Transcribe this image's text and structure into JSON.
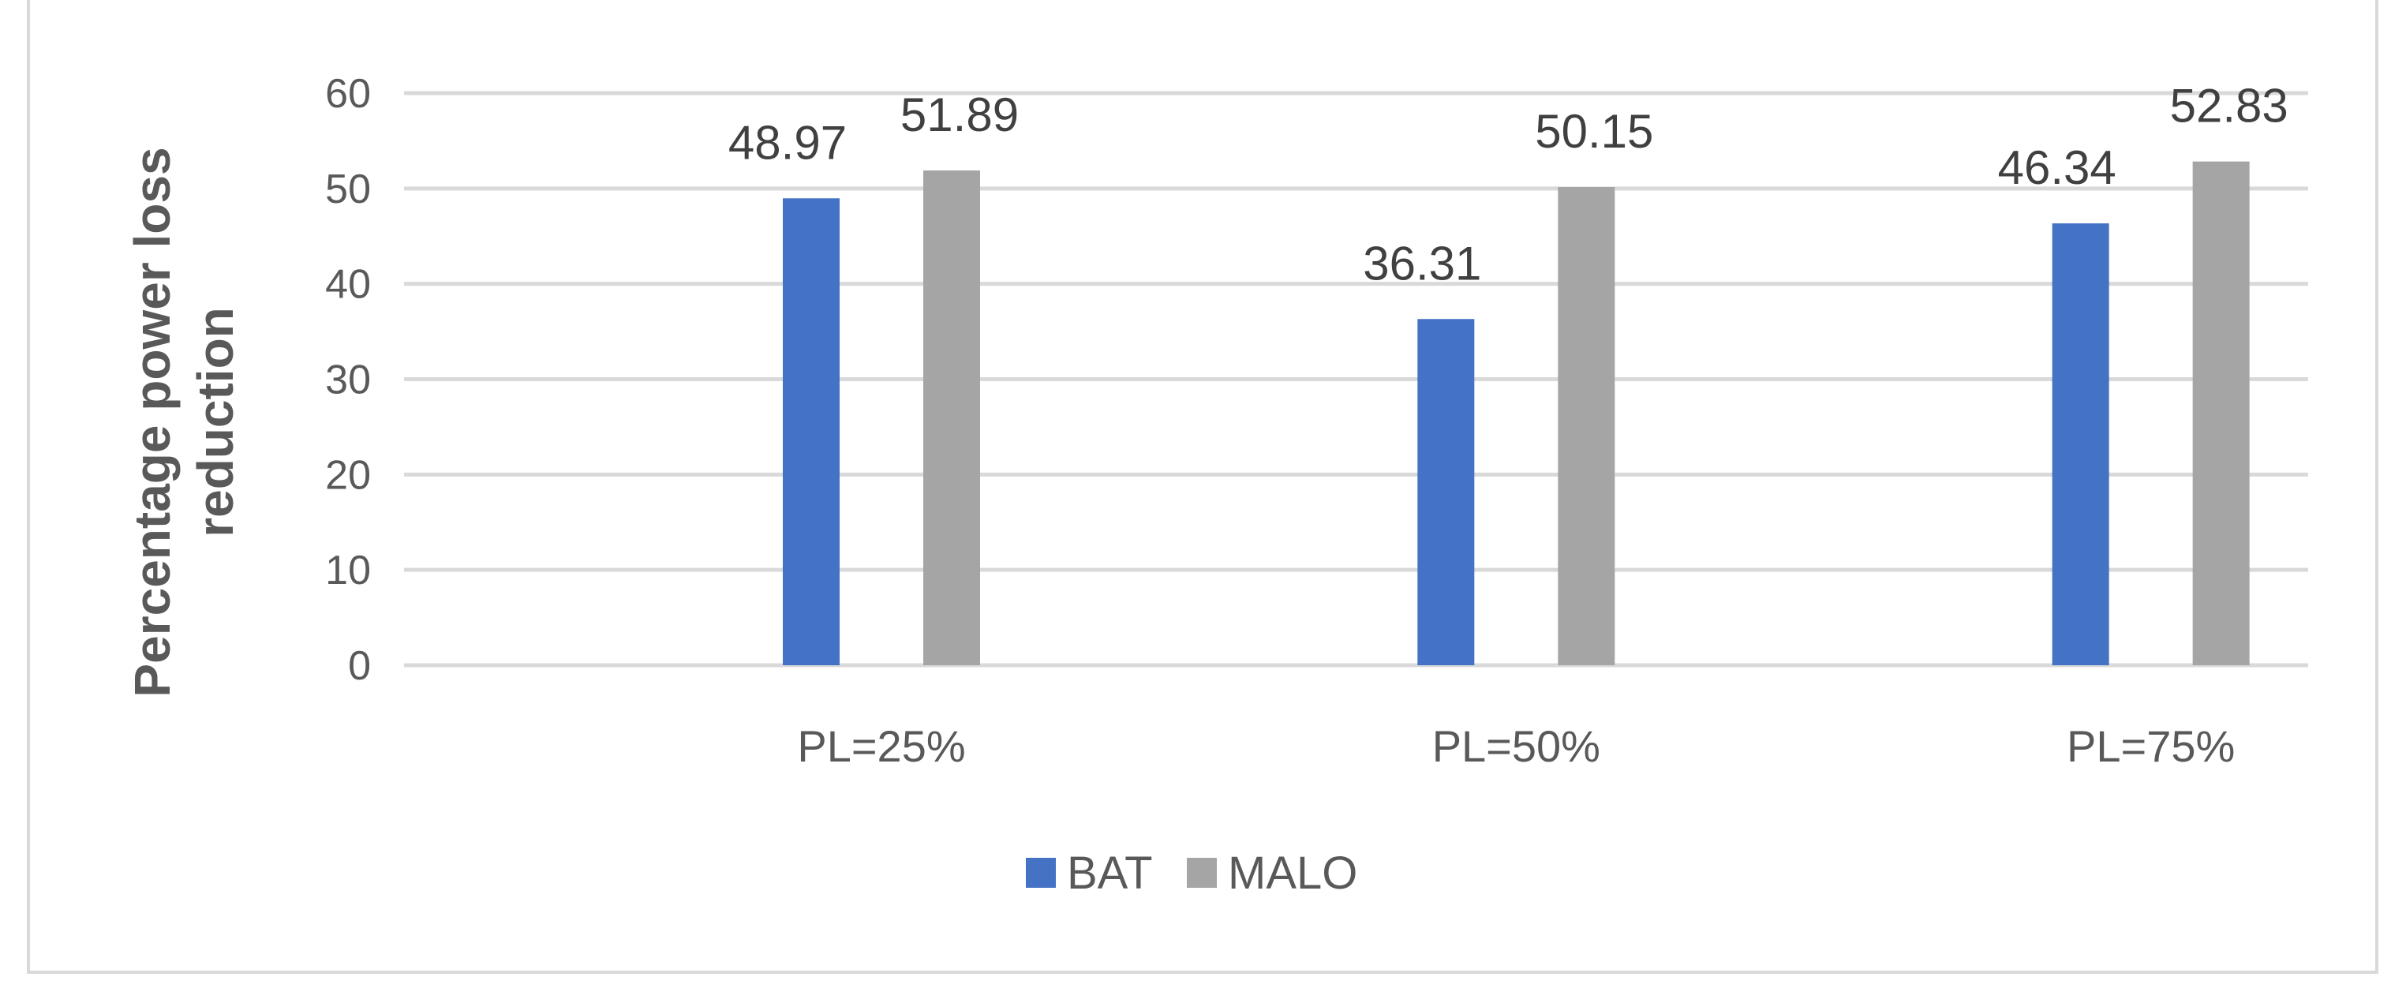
{
  "chart_data": {
    "type": "bar",
    "categories": [
      "PL=25%",
      "PL=50%",
      "PL=75%"
    ],
    "series": [
      {
        "name": "BAT",
        "values": [
          48.97,
          36.31,
          46.34
        ],
        "color": "#4472c4"
      },
      {
        "name": "MALO",
        "values": [
          51.89,
          50.15,
          52.83
        ],
        "color": "#a5a5a5"
      }
    ],
    "data_labels": [
      [
        "48.97",
        "36.31",
        "46.34"
      ],
      [
        "51.89",
        "50.15",
        "52.83"
      ]
    ],
    "title": "",
    "xlabel": "",
    "ylabel": "Percentage power loss reduction",
    "ylabel_lines": [
      "Percentage power loss",
      "reduction"
    ],
    "ylim": [
      0,
      60
    ],
    "yticks": [
      0,
      10,
      20,
      30,
      40,
      50,
      60
    ],
    "ytick_labels": [
      "0",
      "10",
      "20",
      "30",
      "40",
      "50",
      "60"
    ],
    "grid": true,
    "legend_position": "bottom",
    "colors": {
      "gridline": "#d9d9d9",
      "text": "#595959"
    }
  }
}
